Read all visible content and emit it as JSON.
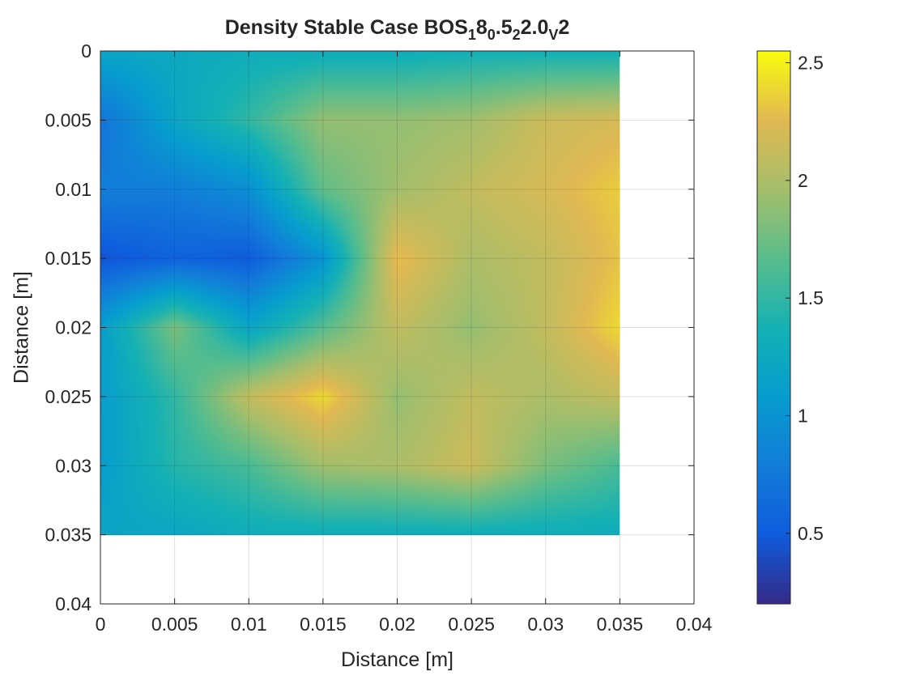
{
  "chart_data": {
    "type": "heatmap",
    "title": {
      "parts": [
        {
          "t": "Density Stable Case BOS"
        },
        {
          "t": "1",
          "sub": true
        },
        {
          "t": "8"
        },
        {
          "t": "0",
          "sub": true
        },
        {
          "t": ".5"
        },
        {
          "t": "2",
          "sub": true
        },
        {
          "t": "2.0"
        },
        {
          "t": "V",
          "sub": true
        },
        {
          "t": "2"
        }
      ]
    },
    "xlabel": "Distance [m]",
    "ylabel": "Distance [m]",
    "xlim": [
      0,
      0.04
    ],
    "ylim": [
      0,
      0.04
    ],
    "y_direction": "reversed",
    "x_ticks": [
      "0",
      "0.005",
      "0.01",
      "0.015",
      "0.02",
      "0.025",
      "0.03",
      "0.035",
      "0.04"
    ],
    "y_ticks": [
      "0",
      "0.005",
      "0.01",
      "0.015",
      "0.02",
      "0.025",
      "0.03",
      "0.035",
      "0.04"
    ],
    "grid": true,
    "data_extent": {
      "x": [
        0,
        0.035
      ],
      "y": [
        0,
        0.035
      ]
    },
    "colormap": "parula",
    "clim": [
      0.2,
      2.55
    ],
    "colorbar": {
      "position": "right",
      "ticks": [
        "0.5",
        "1",
        "1.5",
        "2",
        "2.5"
      ]
    },
    "grid_x": [
      0,
      0.005,
      0.01,
      0.015,
      0.02,
      0.025,
      0.03,
      0.035
    ],
    "grid_y": [
      0,
      0.005,
      0.01,
      0.015,
      0.02,
      0.025,
      0.03,
      0.035
    ],
    "z": [
      [
        1.2,
        1.25,
        1.3,
        1.3,
        1.3,
        1.35,
        1.35,
        1.35
      ],
      [
        0.7,
        1.2,
        1.5,
        1.9,
        1.9,
        1.95,
        2.15,
        2.2
      ],
      [
        0.8,
        0.8,
        0.95,
        1.7,
        1.95,
        2.1,
        2.2,
        2.35
      ],
      [
        0.45,
        0.55,
        0.5,
        1.0,
        2.3,
        2.0,
        2.1,
        2.3
      ],
      [
        1.1,
        1.8,
        1.2,
        1.65,
        2.1,
        1.9,
        2.1,
        2.4
      ],
      [
        1.1,
        1.5,
        2.1,
        2.4,
        1.9,
        2.1,
        2.0,
        2.1
      ],
      [
        1.1,
        1.45,
        1.6,
        1.95,
        2.0,
        2.15,
        1.8,
        1.6
      ],
      [
        1.2,
        1.2,
        1.3,
        1.3,
        1.3,
        1.3,
        1.3,
        1.3
      ]
    ]
  }
}
